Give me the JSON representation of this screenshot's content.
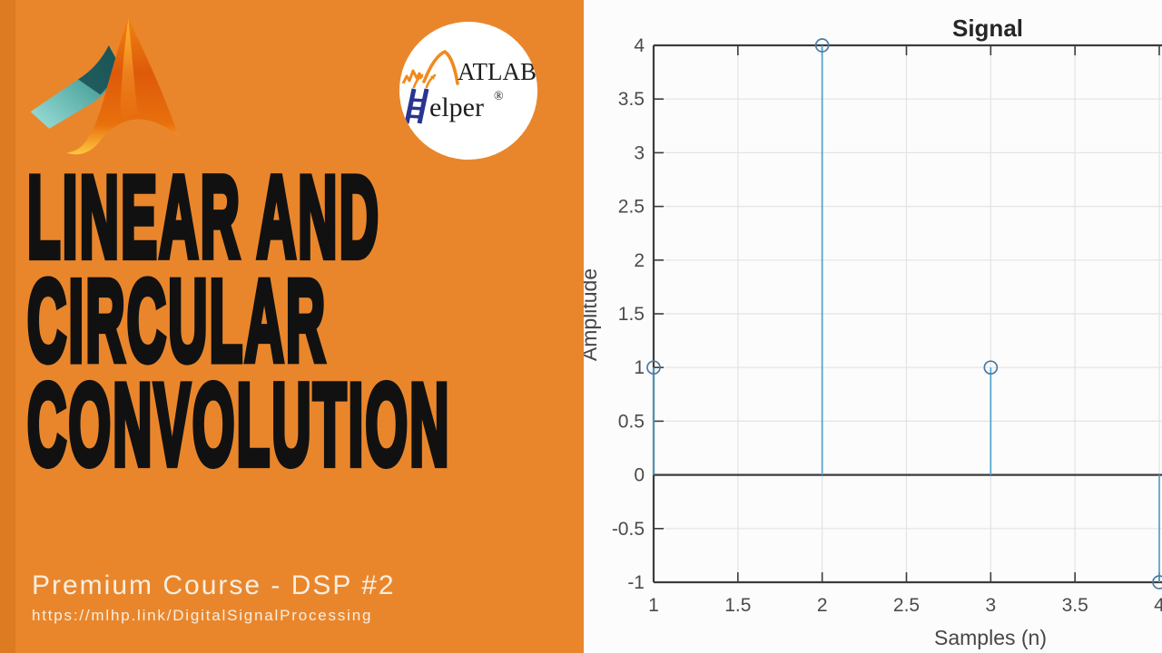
{
  "theme": {
    "orange_background": "#E9862C",
    "orange_edge_strip": "#DD7B23",
    "heading_color": "#111111",
    "footer_text_color": "#F6EFE2",
    "chart_panel_background": "#FCFCFC"
  },
  "icons": {
    "matlab_logo": "matlab-membrane-3d-logo",
    "helper_badge": "matlab-helper-circular-logo",
    "helper_wave": "orange-waveform-M-glyph",
    "helper_ladder": "blue-ladder-H-glyph"
  },
  "left_panel": {
    "heading_lines": [
      "LINEAR AND",
      "CIRCULAR",
      "CONVOLUTION"
    ],
    "subtitle": "Premium Course - DSP #2",
    "url": "https://mlhp.link/DigitalSignalProcessing",
    "badge": {
      "brand_top": "ATLAB",
      "brand_bottom": "elper",
      "registered": "®"
    }
  },
  "chart_data": {
    "type": "stem",
    "title": "Signal",
    "xlabel": "Samples (n)",
    "ylabel": "Amplitude",
    "x": [
      1,
      2,
      3,
      4
    ],
    "y": [
      1,
      4,
      1,
      -1
    ],
    "xlim": [
      1,
      4.05
    ],
    "ylim": [
      -1,
      4
    ],
    "xticks": [
      "1",
      "1.5",
      "2",
      "2.5",
      "3",
      "3.5",
      "4"
    ],
    "yticks": [
      "-1",
      "-0.5",
      "0",
      "0.5",
      "1",
      "1.5",
      "2",
      "2.5",
      "3",
      "3.5",
      "4"
    ],
    "grid": true,
    "baseline_y": 0,
    "marker": "open-circle",
    "legend": null,
    "stem_color": "#4FA3CD",
    "marker_color": "#4B7BA4",
    "axis_color": "#3C3C3C",
    "grid_color": "#E3E3E3",
    "tick_label_color": "#4B4B4B",
    "title_color": "#262626"
  }
}
